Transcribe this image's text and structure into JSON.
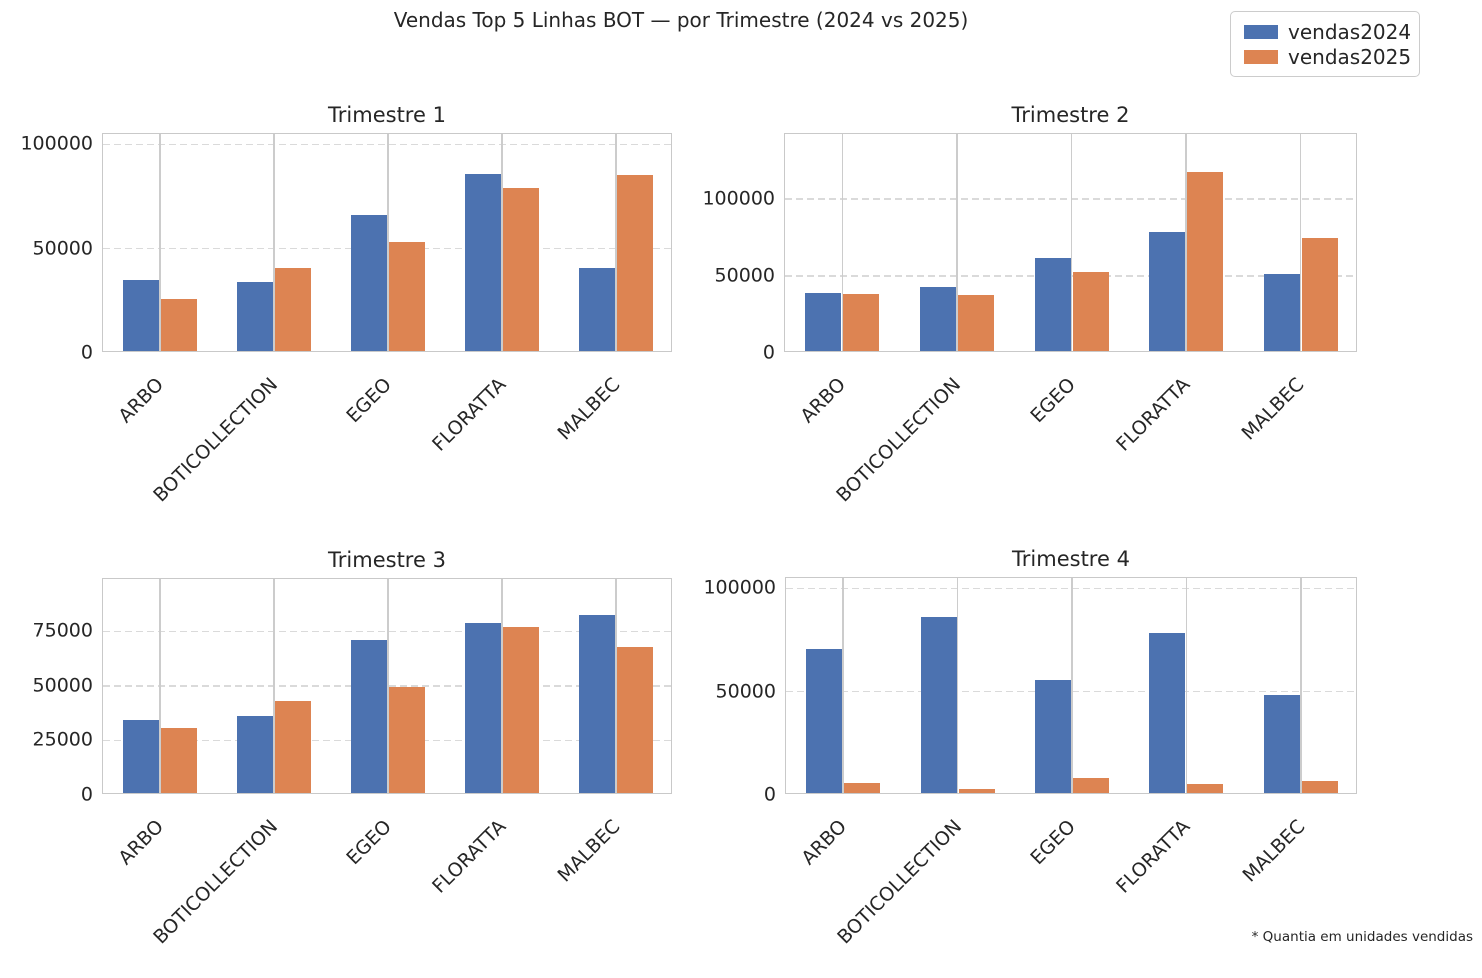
{
  "figure": {
    "title": "Vendas Top 5 Linhas BOT — por Trimestre (2024 vs 2025)",
    "footnote": "* Quantia em unidades vendidas"
  },
  "legend": {
    "position": "top-right",
    "items": [
      {
        "label": "vendas2024",
        "color": "#4C72B0"
      },
      {
        "label": "vendas2025",
        "color": "#DD8452"
      }
    ]
  },
  "chart_data": {
    "type": "bar",
    "title": "Vendas Top 5 Linhas BOT — por Trimestre (2024 vs 2025)",
    "categories": [
      "ARBO",
      "BOTICOLLECTION",
      "EGEO",
      "FLORATTA",
      "MALBEC"
    ],
    "series_colors": {
      "vendas2024": "#4C72B0",
      "vendas2025": "#DD8452"
    },
    "grid": {
      "horizontal": "dashed",
      "vertical": "solid"
    },
    "legend_position": "top-right",
    "xlabel": "",
    "ylabel": "",
    "footnote": "* Quantia em unidades vendidas",
    "subplots": [
      {
        "title": "Trimestre 1",
        "ylim": [
          0,
          105000
        ],
        "yticks": [
          0,
          50000,
          100000
        ],
        "series": [
          {
            "name": "vendas2024",
            "values": [
              34000,
              33000,
              65000,
              85000,
              40000
            ]
          },
          {
            "name": "vendas2025",
            "values": [
              25000,
              40000,
              52500,
              78000,
              84500
            ]
          }
        ]
      },
      {
        "title": "Trimestre 2",
        "ylim": [
          0,
          142000
        ],
        "yticks": [
          0,
          50000,
          100000
        ],
        "series": [
          {
            "name": "vendas2024",
            "values": [
              37500,
              41500,
              60000,
              77000,
              50000
            ]
          },
          {
            "name": "vendas2025",
            "values": [
              37000,
              36000,
              51500,
              116000,
              73000
            ]
          }
        ]
      },
      {
        "title": "Trimestre 3",
        "ylim": [
          0,
          99000
        ],
        "yticks": [
          0,
          25000,
          50000,
          75000
        ],
        "series": [
          {
            "name": "vendas2024",
            "values": [
              33500,
              35500,
              70000,
              78000,
              81500
            ]
          },
          {
            "name": "vendas2025",
            "values": [
              30000,
              42000,
              48500,
              76000,
              67000
            ]
          }
        ]
      },
      {
        "title": "Trimestre 4",
        "ylim": [
          0,
          105000
        ],
        "yticks": [
          0,
          50000,
          100000
        ],
        "series": [
          {
            "name": "vendas2024",
            "values": [
              69500,
              85000,
              54500,
              77500,
              47500
            ]
          },
          {
            "name": "vendas2025",
            "values": [
              5000,
              2000,
              7500,
              4500,
              6000
            ]
          }
        ]
      }
    ]
  }
}
